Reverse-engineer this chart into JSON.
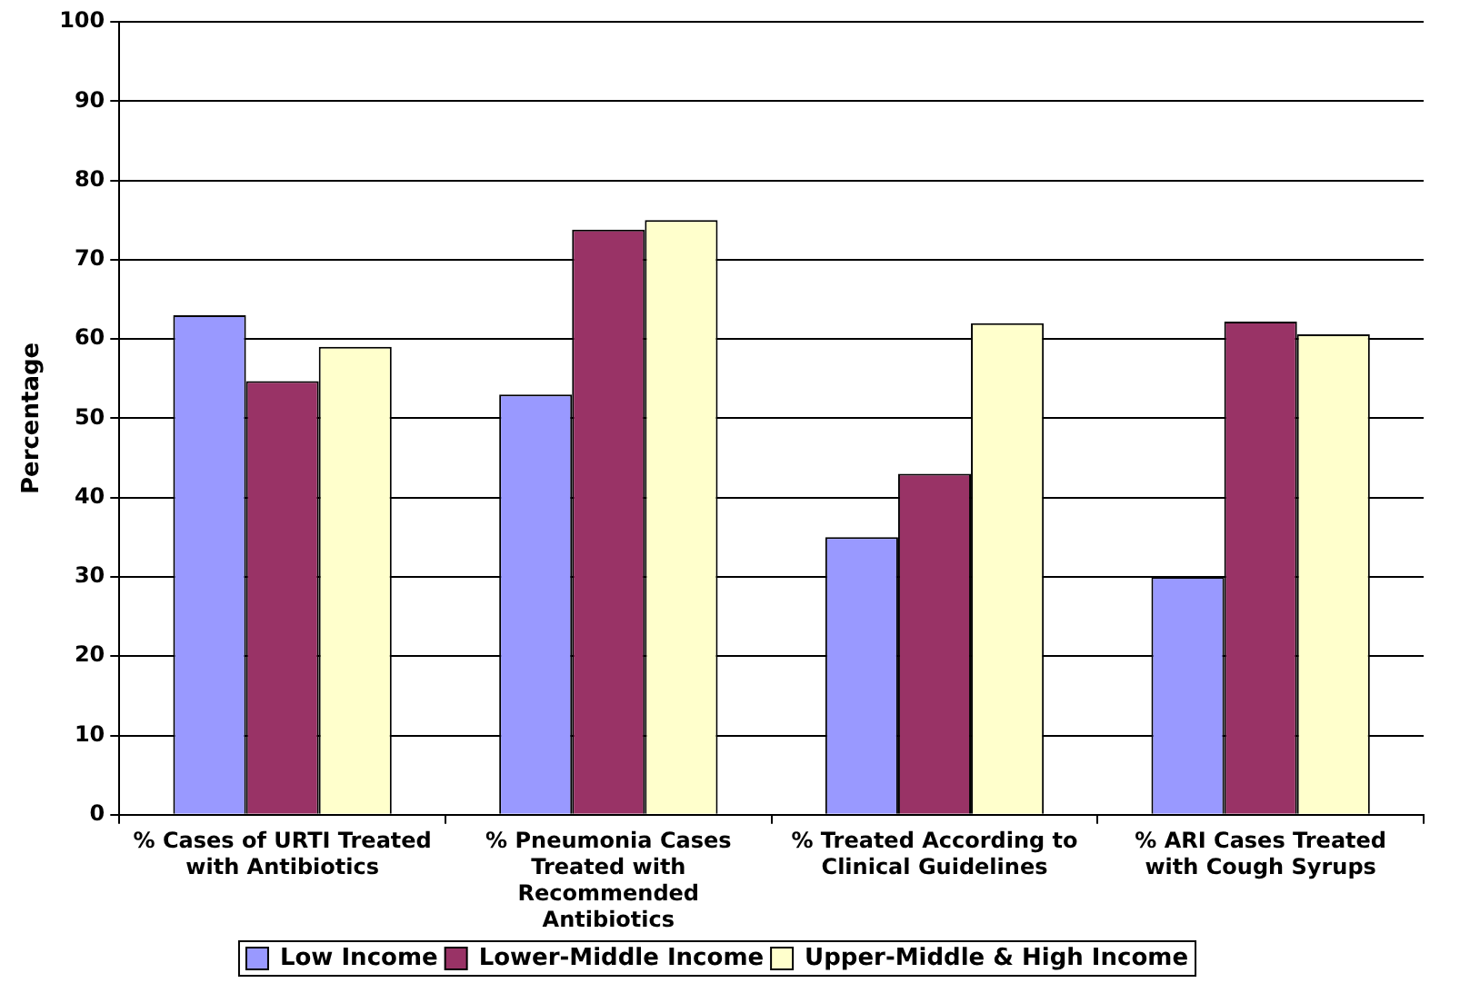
{
  "chart_data": {
    "type": "bar",
    "ylabel": "Percentage",
    "categories": [
      "% Cases of URTI Treated with Antibiotics",
      "% Pneumonia Cases Treated with Recommended Antibiotics",
      "% Treated According to Clinical Guidelines",
      "% ARI Cases Treated with Cough Syrups"
    ],
    "series": [
      {
        "name": "Low Income",
        "color": "#9999ff",
        "values": [
          63,
          53,
          35,
          30
        ]
      },
      {
        "name": "Lower-Middle Income",
        "color": "#993366",
        "values": [
          54.7,
          73.8,
          43,
          62.2
        ]
      },
      {
        "name": "Upper-Middle & High Income",
        "color": "#ffffcc",
        "values": [
          59,
          75,
          62,
          60.6
        ]
      }
    ],
    "ylim": [
      0,
      100
    ],
    "yticks": [
      0,
      10,
      20,
      30,
      40,
      50,
      60,
      70,
      80,
      90,
      100
    ],
    "grid": "y",
    "legend": "bottom"
  }
}
